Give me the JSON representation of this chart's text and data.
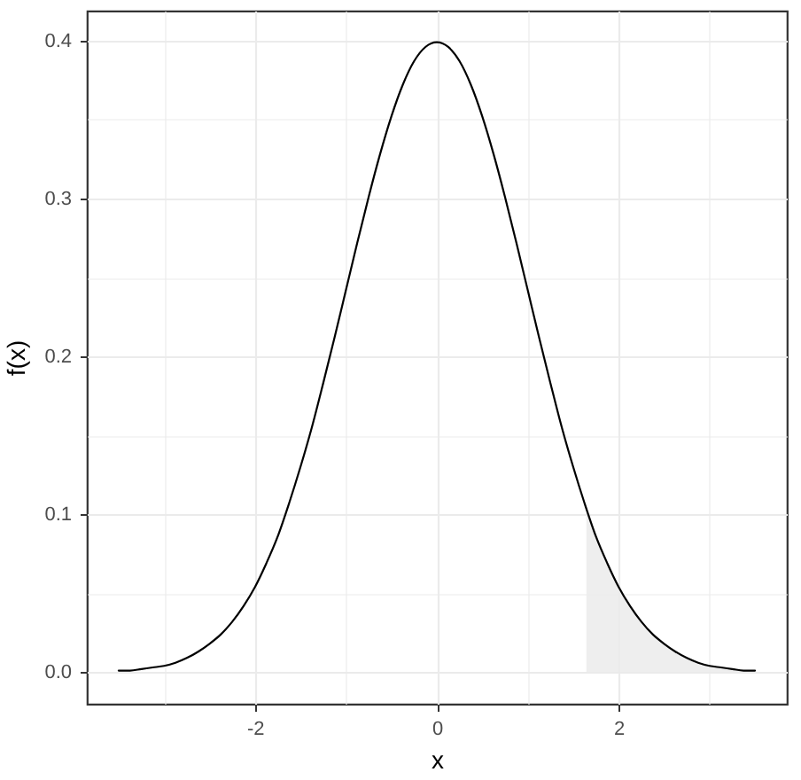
{
  "chart_data": {
    "type": "line",
    "xlabel": "x",
    "ylabel": "f(x)",
    "series": [
      {
        "color": "#000000",
        "x": [
          -3.5,
          -3.375,
          -3.25,
          -3.125,
          -3.0,
          -2.875,
          -2.75,
          -2.625,
          -2.5,
          -2.375,
          -2.25,
          -2.125,
          -2.0,
          -1.875,
          -1.75,
          -1.625,
          -1.5,
          -1.375,
          -1.25,
          -1.125,
          -1.0,
          -0.875,
          -0.75,
          -0.625,
          -0.5,
          -0.375,
          -0.25,
          -0.125,
          0.0,
          0.125,
          0.25,
          0.375,
          0.5,
          0.625,
          0.75,
          0.875,
          1.0,
          1.125,
          1.25,
          1.375,
          1.5,
          1.625,
          1.75,
          1.875,
          2.0,
          2.125,
          2.25,
          2.375,
          2.5,
          2.625,
          2.75,
          2.875,
          3.0,
          3.125,
          3.25,
          3.375,
          3.5
        ],
        "values": [
          0.001,
          0.001,
          0.002,
          0.003,
          0.004,
          0.006,
          0.009,
          0.013,
          0.018,
          0.024,
          0.032,
          0.042,
          0.054,
          0.069,
          0.086,
          0.107,
          0.13,
          0.155,
          0.183,
          0.212,
          0.242,
          0.272,
          0.301,
          0.328,
          0.352,
          0.372,
          0.387,
          0.396,
          0.399,
          0.396,
          0.387,
          0.372,
          0.352,
          0.328,
          0.301,
          0.272,
          0.242,
          0.212,
          0.183,
          0.155,
          0.13,
          0.107,
          0.086,
          0.069,
          0.054,
          0.042,
          0.032,
          0.024,
          0.018,
          0.013,
          0.009,
          0.006,
          0.004,
          0.003,
          0.002,
          0.001,
          0.001
        ]
      },
      {
        "type": "area",
        "color": "#ebebeb",
        "x": [
          1.645,
          1.75,
          1.875,
          2.0,
          2.125,
          2.25,
          2.375,
          2.5,
          2.625,
          2.75,
          2.875,
          3.0,
          3.125,
          3.25,
          3.375,
          3.5
        ],
        "values": [
          0.103,
          0.086,
          0.069,
          0.054,
          0.042,
          0.032,
          0.024,
          0.018,
          0.013,
          0.009,
          0.006,
          0.004,
          0.003,
          0.002,
          0.001,
          0.001
        ]
      }
    ],
    "xlim": [
      -3.85,
      3.85
    ],
    "ylim": [
      -0.02,
      0.419
    ],
    "xticks": [
      {
        "value": -3,
        "label": null
      },
      -2,
      {
        "value": -1,
        "label": null
      },
      0,
      {
        "value": 1,
        "label": null
      },
      2,
      {
        "value": 3,
        "label": null
      }
    ],
    "yticks": [
      {
        "value": 0,
        "label": "0.0"
      },
      {
        "value": 0.05,
        "label": null
      },
      0.1,
      {
        "value": 0.15,
        "label": null
      },
      0.2,
      {
        "value": 0.25,
        "label": null
      },
      0.3,
      {
        "value": 0.35,
        "label": null
      },
      0.4
    ],
    "grid": true,
    "line_style": "solid"
  }
}
